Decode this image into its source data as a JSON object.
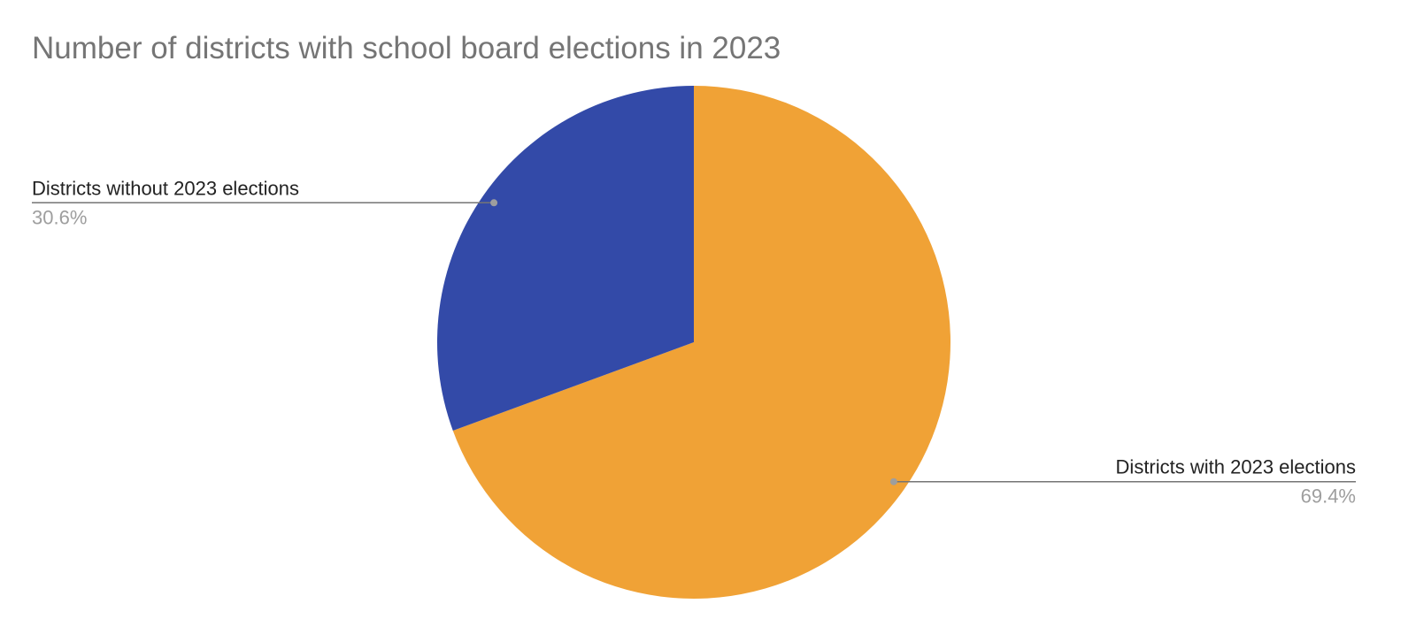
{
  "chart_data": {
    "type": "pie",
    "title": "Number of districts with school board elections in 2023",
    "categories": [
      "Districts with 2023 elections",
      "Districts without 2023 elections"
    ],
    "values": [
      69.4,
      30.6
    ],
    "value_labels": [
      "69.4%",
      "30.6%"
    ],
    "colors": [
      "#f0a236",
      "#334aa8"
    ]
  }
}
